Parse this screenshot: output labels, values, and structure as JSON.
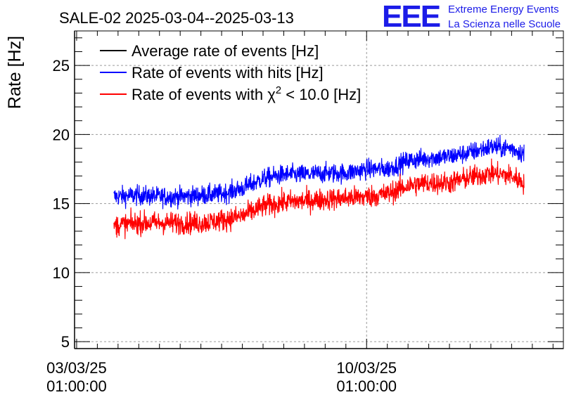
{
  "chart_data": {
    "type": "line",
    "title": "SALE-02 2025-03-04--2025-03-13",
    "xlabel": "",
    "ylabel": "Rate [Hz]",
    "ylim": [
      4.5,
      27.5
    ],
    "y_ticks": [
      5,
      10,
      15,
      20,
      25
    ],
    "x_ticks": [
      {
        "pos_days": 0,
        "line1": "03/03/25",
        "line2": "01:00:00"
      },
      {
        "pos_days": 7,
        "line1": "10/03/25",
        "line2": "01:00:00"
      }
    ],
    "xlim_days": [
      -0.05,
      11.75
    ],
    "grid": true,
    "legend": {
      "placement": "top-left",
      "entries": [
        {
          "label": "Average rate of events [Hz]",
          "color": "#000000"
        },
        {
          "label": "Rate of events with hits [Hz]",
          "color": "#0000ff"
        },
        {
          "label_prefix": "Rate of events with ",
          "label_chi": "χ",
          "label_sup": "2",
          "label_suffix": " < 10.0 [Hz]",
          "color": "#ff0000"
        }
      ]
    },
    "data_range_days": [
      0.9,
      10.8
    ],
    "series": [
      {
        "name": "Rate of events with hits [Hz]",
        "color": "#0000ff",
        "x_days": [
          0.9,
          1.5,
          2.0,
          2.5,
          3.0,
          3.5,
          4.0,
          4.5,
          5.0,
          5.5,
          6.0,
          6.5,
          7.0,
          7.5,
          8.0,
          8.5,
          9.0,
          9.5,
          10.0,
          10.5,
          10.8
        ],
        "mean": [
          15.5,
          15.6,
          15.5,
          15.5,
          15.6,
          15.7,
          16.1,
          16.8,
          17.1,
          17.1,
          17.2,
          17.2,
          17.5,
          17.5,
          18.1,
          18.3,
          18.4,
          18.7,
          19.1,
          19.0,
          18.6
        ],
        "spread": 0.75
      },
      {
        "name": "Rate of events with χ2 < 10.0 [Hz]",
        "color": "#ff0000",
        "x_days": [
          0.9,
          1.5,
          2.0,
          2.5,
          3.0,
          3.5,
          4.0,
          4.5,
          5.0,
          5.5,
          6.0,
          6.5,
          7.0,
          7.5,
          8.0,
          8.5,
          9.0,
          9.5,
          10.0,
          10.5,
          10.8
        ],
        "mean": [
          13.4,
          13.6,
          13.6,
          13.6,
          13.6,
          13.8,
          14.1,
          14.8,
          15.1,
          15.2,
          15.3,
          15.4,
          15.5,
          15.7,
          16.3,
          16.5,
          16.5,
          16.9,
          17.2,
          17.0,
          16.5
        ],
        "spread": 0.85
      }
    ]
  },
  "logo": {
    "letters": "EEE",
    "line1": "Extreme Energy Events",
    "line2": "La Scienza nelle Scuole",
    "color": "#1c1ce8"
  }
}
